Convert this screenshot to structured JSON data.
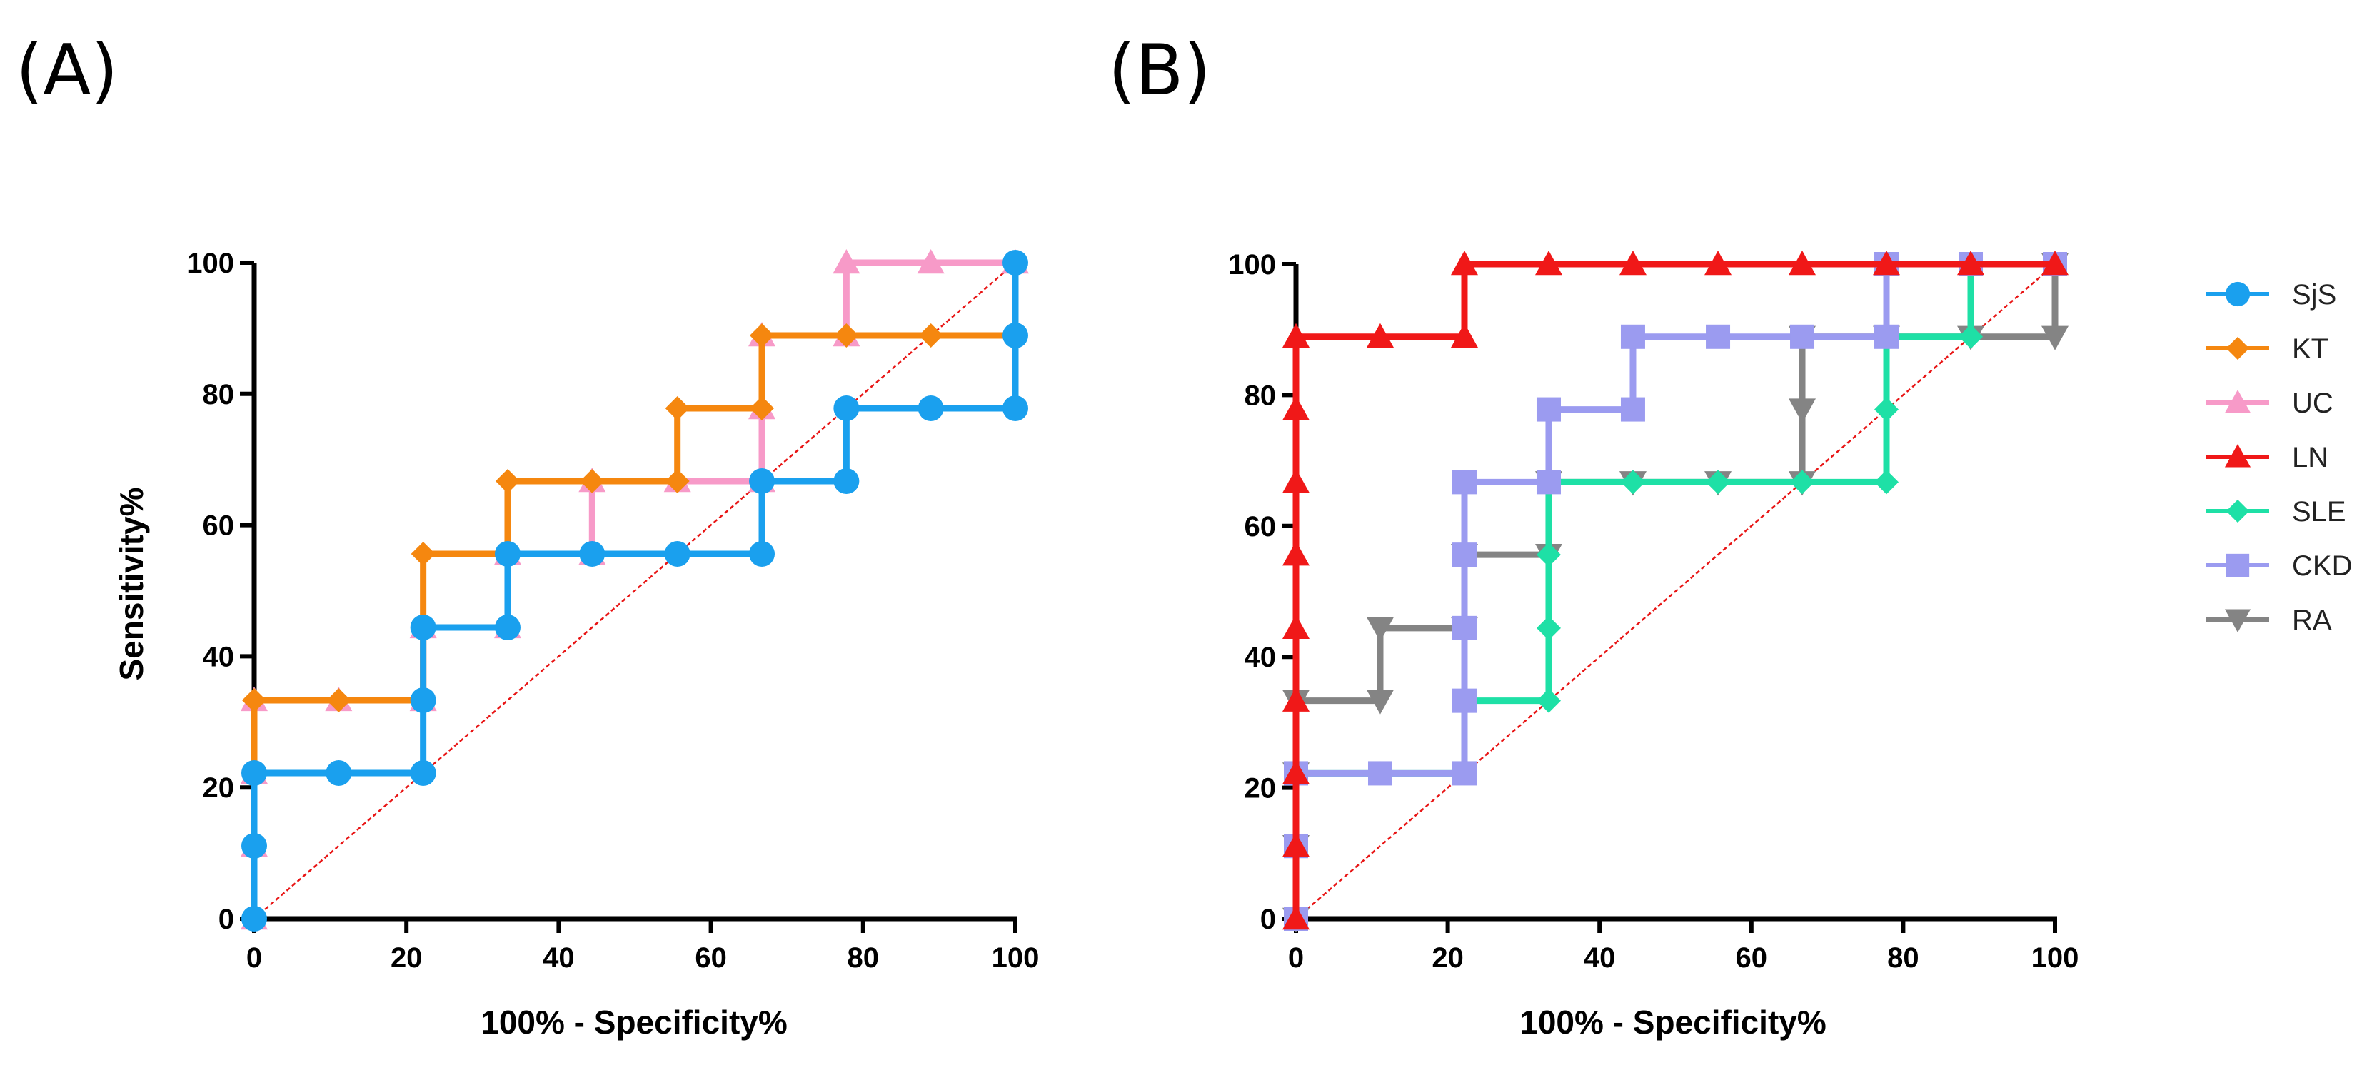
{
  "figure": {
    "panels": [
      "(A)",
      "(B)"
    ]
  },
  "colors": {
    "SjS": "#1aa0ee",
    "KT": "#f5870f",
    "UC": "#f79ac8",
    "LN": "#f01818",
    "SLE": "#1ee0a6",
    "CKD": "#9b9bf0",
    "RA": "#848484",
    "diagonal": "#e81414"
  },
  "legend": {
    "placement": "right",
    "items": [
      {
        "name": "SjS",
        "marker": "circle"
      },
      {
        "name": "KT",
        "marker": "diamond"
      },
      {
        "name": "UC",
        "marker": "triangle-up"
      },
      {
        "name": "LN",
        "marker": "triangle-up"
      },
      {
        "name": "SLE",
        "marker": "diamond"
      },
      {
        "name": "CKD",
        "marker": "square"
      },
      {
        "name": "RA",
        "marker": "triangle-down"
      }
    ]
  },
  "chart_data": [
    {
      "type": "line",
      "panel": "(A)",
      "xlabel": "100% - Specificity%",
      "ylabel": "Sensitivity%",
      "xlim": [
        0,
        100
      ],
      "ylim": [
        0,
        100
      ],
      "xticks": [
        0,
        20,
        40,
        60,
        80,
        100
      ],
      "yticks": [
        0,
        20,
        40,
        60,
        80,
        100
      ],
      "grid": false,
      "reference_line": [
        [
          0,
          0
        ],
        [
          100,
          100
        ]
      ],
      "series": [
        {
          "name": "UC",
          "marker": "triangle-up",
          "points": [
            [
              0,
              0
            ],
            [
              0,
              11.1
            ],
            [
              0,
              22.2
            ],
            [
              0,
              33.3
            ],
            [
              11.1,
              33.3
            ],
            [
              22.2,
              33.3
            ],
            [
              22.2,
              44.4
            ],
            [
              33.3,
              44.4
            ],
            [
              33.3,
              55.6
            ],
            [
              44.4,
              55.6
            ],
            [
              44.4,
              66.7
            ],
            [
              55.6,
              66.7
            ],
            [
              66.7,
              66.7
            ],
            [
              66.7,
              77.8
            ],
            [
              66.7,
              88.9
            ],
            [
              77.8,
              88.9
            ],
            [
              77.8,
              100
            ],
            [
              88.9,
              100
            ],
            [
              100,
              100
            ]
          ]
        },
        {
          "name": "KT",
          "marker": "diamond",
          "points": [
            [
              0,
              0
            ],
            [
              0,
              11.1
            ],
            [
              0,
              22.2
            ],
            [
              0,
              33.3
            ],
            [
              11.1,
              33.3
            ],
            [
              22.2,
              33.3
            ],
            [
              22.2,
              44.4
            ],
            [
              22.2,
              55.6
            ],
            [
              33.3,
              55.6
            ],
            [
              33.3,
              66.7
            ],
            [
              44.4,
              66.7
            ],
            [
              55.6,
              66.7
            ],
            [
              55.6,
              77.8
            ],
            [
              66.7,
              77.8
            ],
            [
              66.7,
              88.9
            ],
            [
              77.8,
              88.9
            ],
            [
              88.9,
              88.9
            ],
            [
              100,
              88.9
            ],
            [
              100,
              100
            ]
          ]
        },
        {
          "name": "SjS",
          "marker": "circle",
          "points": [
            [
              0,
              0
            ],
            [
              0,
              11.1
            ],
            [
              0,
              22.2
            ],
            [
              11.1,
              22.2
            ],
            [
              22.2,
              22.2
            ],
            [
              22.2,
              33.3
            ],
            [
              22.2,
              44.4
            ],
            [
              33.3,
              44.4
            ],
            [
              33.3,
              55.6
            ],
            [
              44.4,
              55.6
            ],
            [
              55.6,
              55.6
            ],
            [
              66.7,
              55.6
            ],
            [
              66.7,
              66.7
            ],
            [
              77.8,
              66.7
            ],
            [
              77.8,
              77.8
            ],
            [
              88.9,
              77.8
            ],
            [
              100,
              77.8
            ],
            [
              100,
              88.9
            ],
            [
              100,
              100
            ]
          ]
        }
      ]
    },
    {
      "type": "line",
      "panel": "(B)",
      "xlabel": "100% - Specificity%",
      "ylabel": "",
      "xlim": [
        0,
        100
      ],
      "ylim": [
        0,
        100
      ],
      "xticks": [
        0,
        20,
        40,
        60,
        80,
        100
      ],
      "yticks": [
        0,
        20,
        40,
        60,
        80,
        100
      ],
      "grid": false,
      "reference_line": [
        [
          0,
          0
        ],
        [
          100,
          100
        ]
      ],
      "series": [
        {
          "name": "RA",
          "marker": "triangle-down",
          "points": [
            [
              0,
              0
            ],
            [
              0,
              11.1
            ],
            [
              0,
              22.2
            ],
            [
              0,
              33.3
            ],
            [
              11.1,
              33.3
            ],
            [
              11.1,
              44.4
            ],
            [
              22.2,
              44.4
            ],
            [
              22.2,
              55.6
            ],
            [
              33.3,
              55.6
            ],
            [
              33.3,
              66.7
            ],
            [
              44.4,
              66.7
            ],
            [
              55.6,
              66.7
            ],
            [
              66.7,
              66.7
            ],
            [
              66.7,
              77.8
            ],
            [
              66.7,
              88.9
            ],
            [
              77.8,
              88.9
            ],
            [
              88.9,
              88.9
            ],
            [
              100,
              88.9
            ],
            [
              100,
              100
            ]
          ]
        },
        {
          "name": "SLE",
          "marker": "diamond",
          "points": [
            [
              0,
              0
            ],
            [
              0,
              11.1
            ],
            [
              0,
              22.2
            ],
            [
              11.1,
              22.2
            ],
            [
              22.2,
              22.2
            ],
            [
              22.2,
              33.3
            ],
            [
              33.3,
              33.3
            ],
            [
              33.3,
              44.4
            ],
            [
              33.3,
              55.6
            ],
            [
              33.3,
              66.7
            ],
            [
              44.4,
              66.7
            ],
            [
              55.6,
              66.7
            ],
            [
              66.7,
              66.7
            ],
            [
              77.8,
              66.7
            ],
            [
              77.8,
              77.8
            ],
            [
              77.8,
              88.9
            ],
            [
              88.9,
              88.9
            ],
            [
              88.9,
              100
            ],
            [
              100,
              100
            ]
          ]
        },
        {
          "name": "CKD",
          "marker": "square",
          "points": [
            [
              0,
              0
            ],
            [
              0,
              11.1
            ],
            [
              0,
              22.2
            ],
            [
              11.1,
              22.2
            ],
            [
              22.2,
              22.2
            ],
            [
              22.2,
              33.3
            ],
            [
              22.2,
              44.4
            ],
            [
              22.2,
              55.6
            ],
            [
              22.2,
              66.7
            ],
            [
              33.3,
              66.7
            ],
            [
              33.3,
              77.8
            ],
            [
              44.4,
              77.8
            ],
            [
              44.4,
              88.9
            ],
            [
              55.6,
              88.9
            ],
            [
              66.7,
              88.9
            ],
            [
              77.8,
              88.9
            ],
            [
              77.8,
              100
            ],
            [
              88.9,
              100
            ],
            [
              100,
              100
            ]
          ]
        },
        {
          "name": "LN",
          "marker": "triangle-up",
          "points": [
            [
              0,
              0
            ],
            [
              0,
              11.1
            ],
            [
              0,
              22.2
            ],
            [
              0,
              33.3
            ],
            [
              0,
              44.4
            ],
            [
              0,
              55.6
            ],
            [
              0,
              66.7
            ],
            [
              0,
              77.8
            ],
            [
              0,
              88.9
            ],
            [
              11.1,
              88.9
            ],
            [
              22.2,
              88.9
            ],
            [
              22.2,
              100
            ],
            [
              33.3,
              100
            ],
            [
              44.4,
              100
            ],
            [
              55.6,
              100
            ],
            [
              66.7,
              100
            ],
            [
              77.8,
              100
            ],
            [
              88.9,
              100
            ],
            [
              100,
              100
            ]
          ]
        }
      ]
    }
  ]
}
